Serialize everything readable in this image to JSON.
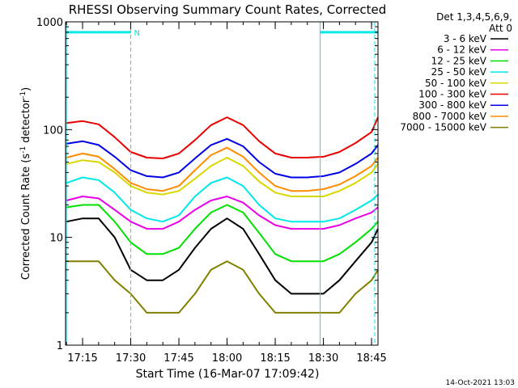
{
  "chart_data": {
    "type": "line",
    "title": "RHESSI Observing Summary Count Rates, Corrected",
    "xlabel": "Start Time (16-Mar-07 17:09:42)",
    "ylabel_main": "Corrected Count Rate (s",
    "ylabel_sup1": "-1",
    "ylabel_mid": " detector",
    "ylabel_sup2": "-1",
    "ylabel_end": ")",
    "ylog": true,
    "ylim": [
      1,
      1000
    ],
    "xlim": [
      "17:09:42",
      "18:47:00"
    ],
    "yticks": [
      {
        "value": 1,
        "label": "1"
      },
      {
        "value": 10,
        "label": "10"
      },
      {
        "value": 100,
        "label": "100"
      },
      {
        "value": 1000,
        "label": "1000"
      }
    ],
    "xticks": [
      {
        "value": "17:15",
        "label": "17:15"
      },
      {
        "value": "17:30",
        "label": "17:30"
      },
      {
        "value": "17:45",
        "label": "17:45"
      },
      {
        "value": "18:00",
        "label": "18:00"
      },
      {
        "value": "18:15",
        "label": "18:15"
      },
      {
        "value": "18:30",
        "label": "18:30"
      },
      {
        "value": "18:45",
        "label": "18:45"
      }
    ],
    "legend_header": [
      "Det 1,3,4,5,6,9,",
      "Att 0"
    ],
    "legend_position": "right",
    "x": [
      "17:10",
      "17:15",
      "17:20",
      "17:25",
      "17:30",
      "17:35",
      "17:40",
      "17:45",
      "17:50",
      "17:55",
      "18:00",
      "18:05",
      "18:10",
      "18:15",
      "18:20",
      "18:25",
      "18:30",
      "18:35",
      "18:40",
      "18:45",
      "18:47"
    ],
    "series": [
      {
        "name": "3 - 6 keV",
        "color": "#000000",
        "values": [
          14,
          15,
          15,
          10,
          5,
          4,
          4,
          5,
          8,
          12,
          15,
          12,
          7,
          4,
          3,
          3,
          3,
          4,
          6,
          9,
          12
        ]
      },
      {
        "name": "6 - 12 keV",
        "color": "#e800e8",
        "values": [
          22,
          24,
          23,
          18,
          14,
          12,
          12,
          14,
          18,
          22,
          24,
          21,
          16,
          13,
          12,
          12,
          12,
          13,
          15,
          17,
          19
        ]
      },
      {
        "name": "12 - 25 keV",
        "color": "#00e000",
        "values": [
          19,
          20,
          20,
          14,
          9,
          7,
          7,
          8,
          12,
          17,
          20,
          17,
          11,
          7,
          6,
          6,
          6,
          7,
          9,
          12,
          14
        ]
      },
      {
        "name": "25 - 50 keV",
        "color": "#00e8e8",
        "values": [
          32,
          36,
          34,
          26,
          18,
          15,
          14,
          16,
          24,
          32,
          36,
          30,
          20,
          15,
          14,
          14,
          14,
          15,
          18,
          22,
          25
        ]
      },
      {
        "name": "50 - 100 keV",
        "color": "#d8d800",
        "values": [
          48,
          52,
          50,
          40,
          30,
          26,
          25,
          27,
          35,
          46,
          55,
          46,
          33,
          26,
          24,
          24,
          24,
          27,
          32,
          40,
          48
        ]
      },
      {
        "name": "100 - 300 keV",
        "color": "#e80000",
        "values": [
          115,
          120,
          112,
          85,
          62,
          55,
          54,
          60,
          80,
          110,
          130,
          110,
          78,
          60,
          55,
          55,
          56,
          62,
          75,
          95,
          130
        ]
      },
      {
        "name": "300 - 800 keV",
        "color": "#0000e8",
        "values": [
          74,
          78,
          72,
          56,
          42,
          37,
          36,
          40,
          54,
          72,
          82,
          70,
          50,
          39,
          36,
          36,
          37,
          40,
          48,
          60,
          72
        ]
      },
      {
        "name": "800 - 7000 keV",
        "color": "#ff8c00",
        "values": [
          55,
          60,
          56,
          43,
          32,
          28,
          27,
          30,
          42,
          58,
          68,
          56,
          40,
          30,
          27,
          27,
          28,
          31,
          37,
          46,
          55
        ]
      },
      {
        "name": "7000 - 15000 keV",
        "color": "#808000",
        "values": [
          6,
          6,
          6,
          4,
          3,
          2,
          2,
          2,
          3,
          5,
          6,
          5,
          3,
          2,
          2,
          2,
          2,
          2,
          3,
          4,
          5
        ]
      }
    ],
    "annotations": [
      {
        "text": "N",
        "at": "17:30"
      }
    ],
    "timestamp": "14-Oct-2021 13:03"
  }
}
